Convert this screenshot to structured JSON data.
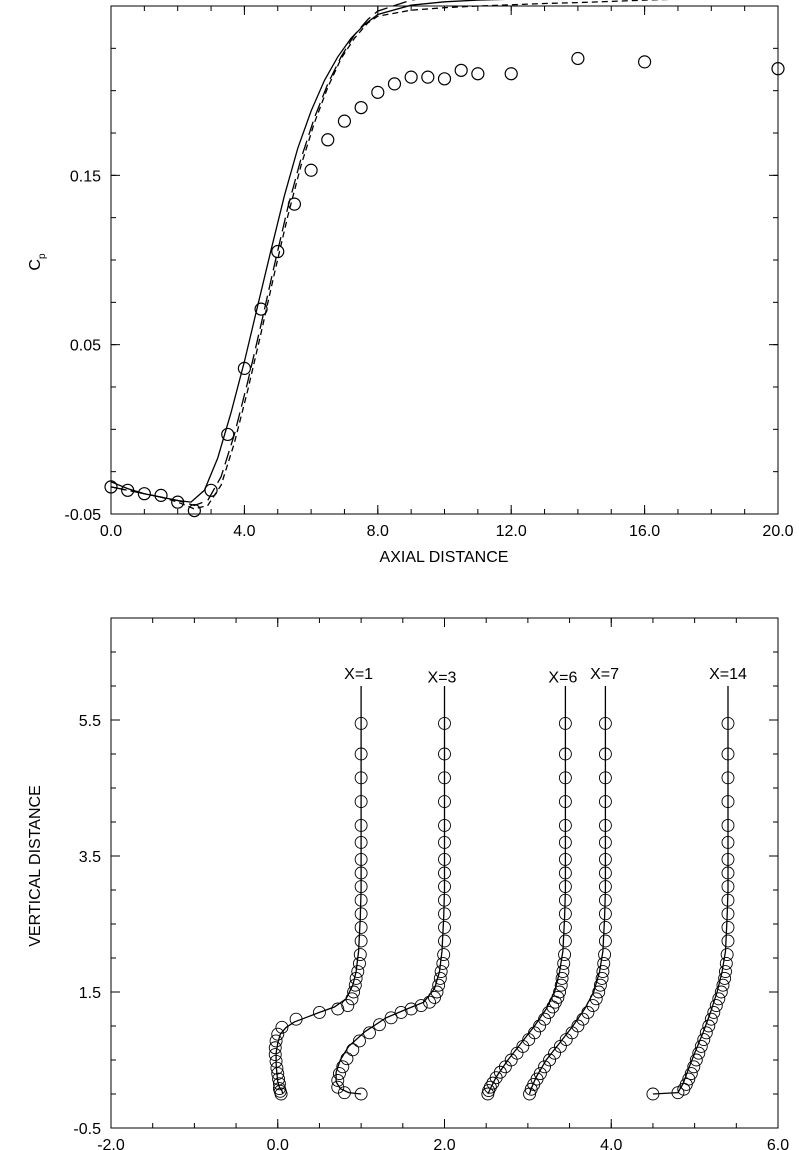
{
  "chart_data": [
    {
      "type": "line",
      "title": "",
      "xlabel": "AXIAL DISTANCE",
      "ylabel": "C",
      "ylabel_sub": "p",
      "xlim": [
        0,
        20
      ],
      "ylim": [
        -0.05,
        0.25
      ],
      "xticks": [
        0,
        4,
        8,
        12,
        16,
        20
      ],
      "xtick_labels": [
        "0.0",
        "4.0",
        "8.0",
        "12.0",
        "16.0",
        "20.0"
      ],
      "yticks": [
        -0.05,
        0.05,
        0.15
      ],
      "ytick_labels": [
        "-0.05",
        "0.05",
        "0.15"
      ],
      "grid": false,
      "series": [
        {
          "style": "solid",
          "x": [
            0,
            0.5,
            1,
            1.5,
            2,
            2.4,
            2.8,
            3.2,
            3.6,
            4,
            4.4,
            4.8,
            5.2,
            5.6,
            6,
            6.4,
            6.8,
            7.2,
            7.6,
            8,
            9,
            10,
            11,
            12,
            13,
            14,
            15,
            16,
            17,
            18,
            19,
            20
          ],
          "y": [
            -0.031,
            -0.035,
            -0.038,
            -0.04,
            -0.042,
            -0.043,
            -0.036,
            -0.017,
            0.01,
            0.04,
            0.073,
            0.106,
            0.138,
            0.166,
            0.188,
            0.206,
            0.22,
            0.231,
            0.239,
            0.245,
            0.2505,
            0.2525,
            0.2535,
            0.254,
            0.2545,
            0.255,
            0.2553,
            0.2556,
            0.2558,
            0.256,
            0.2562,
            0.2562
          ]
        },
        {
          "style": "long-dash",
          "x": [
            0,
            0.5,
            1,
            1.5,
            2,
            2.5,
            2.9,
            3.3,
            3.7,
            4.1,
            4.5,
            4.9,
            5.3,
            5.7,
            6.1,
            6.5,
            6.9,
            7.3,
            7.7,
            8,
            9,
            10,
            11,
            12,
            13,
            14,
            15,
            16,
            17,
            18,
            19,
            19.5,
            20
          ],
          "y": [
            -0.034,
            -0.036,
            -0.038,
            -0.04,
            -0.042,
            -0.045,
            -0.042,
            -0.028,
            -0.003,
            0.028,
            0.062,
            0.097,
            0.131,
            0.16,
            0.184,
            0.204,
            0.22,
            0.233,
            0.242,
            0.247,
            0.2535,
            0.2565,
            0.2585,
            0.2595,
            0.26,
            0.2608,
            0.2615,
            0.2625,
            0.2635,
            0.2645,
            0.266,
            0.2685,
            0.27
          ]
        },
        {
          "style": "short-dash",
          "x": [
            0,
            0.5,
            1,
            1.5,
            2,
            2.5,
            2.9,
            3.3,
            3.7,
            4.1,
            4.5,
            4.9,
            5.3,
            5.7,
            6.1,
            6.5,
            6.9,
            7.3,
            7.7,
            8,
            9,
            10,
            11,
            12,
            13,
            14,
            15,
            16,
            17,
            18,
            19,
            20
          ],
          "y": [
            -0.034,
            -0.036,
            -0.038,
            -0.04,
            -0.043,
            -0.047,
            -0.045,
            -0.033,
            -0.008,
            0.023,
            0.057,
            0.092,
            0.126,
            0.156,
            0.181,
            0.202,
            0.219,
            0.231,
            0.24,
            0.244,
            0.2475,
            0.249,
            0.25,
            0.2507,
            0.2515,
            0.252,
            0.2527,
            0.2535,
            0.254,
            0.2548,
            0.2555,
            0.2568
          ]
        },
        {
          "style": "circles",
          "x": [
            0,
            0.5,
            1,
            1.5,
            2,
            2.5,
            3,
            3.5,
            4,
            4.5,
            5,
            5.5,
            6,
            6.5,
            7,
            7.5,
            8,
            8.5,
            9,
            9.5,
            10,
            10.5,
            11,
            12,
            14,
            16,
            20
          ],
          "y": [
            -0.034,
            -0.036,
            -0.038,
            -0.039,
            -0.043,
            -0.048,
            -0.036,
            -0.003,
            0.036,
            0.071,
            0.105,
            0.133,
            0.153,
            0.171,
            0.182,
            0.19,
            0.199,
            0.204,
            0.208,
            0.208,
            0.207,
            0.212,
            0.21,
            0.21,
            0.219,
            0.217,
            0.213
          ]
        }
      ]
    },
    {
      "type": "line",
      "title": "",
      "xlabel": "",
      "ylabel": "VERTICAL DISTANCE",
      "xlim": [
        -2,
        6
      ],
      "ylim": [
        -0.5,
        7
      ],
      "xticks": [
        -2,
        0,
        2,
        4,
        6
      ],
      "xtick_labels": [
        "-2.0",
        "0.0",
        "2.0",
        "4.0",
        "6.0"
      ],
      "yticks": [
        -0.5,
        1.5,
        3.5,
        5.5
      ],
      "ytick_labels": [
        "-0.5",
        "1.5",
        "3.5",
        "5.5"
      ],
      "grid": false,
      "annotations": [
        {
          "text": "X=1",
          "x": 0.97,
          "y": 6.1
        },
        {
          "text": "X=3",
          "x": 1.97,
          "y": 6.05
        },
        {
          "text": "X=6",
          "x": 3.42,
          "y": 6.05
        },
        {
          "text": "X=7",
          "x": 3.92,
          "y": 6.1
        },
        {
          "text": "X=14",
          "x": 5.4,
          "y": 6.1
        }
      ],
      "profiles": [
        {
          "label": "X=1",
          "line_x": [
            1.0,
            1.0,
            1.0,
            0.99,
            0.97,
            0.94,
            0.9,
            0.82,
            0.68,
            0.5,
            0.35,
            0.2,
            0.1,
            0.03,
            0.0,
            -0.02,
            -0.02,
            -0.01,
            0.0,
            0.02,
            0.05,
            0.06
          ],
          "line_y": [
            6.0,
            4.0,
            3.0,
            2.6,
            2.1,
            1.8,
            1.6,
            1.4,
            1.28,
            1.2,
            1.13,
            1.06,
            0.98,
            0.88,
            0.75,
            0.6,
            0.45,
            0.3,
            0.18,
            0.1,
            0.05,
            0.0
          ],
          "points_x": [
            1.0,
            1.0,
            1.0,
            1.0,
            1.0,
            1.0,
            1.0,
            1.0,
            1.0,
            1.0,
            1.0,
            1.0,
            1.0,
            0.99,
            0.98,
            0.96,
            0.94,
            0.93,
            0.91,
            0.89,
            0.84,
            0.72,
            0.5,
            0.22,
            0.05,
            0.0,
            -0.02,
            -0.03,
            -0.03,
            -0.02,
            -0.01,
            0.0,
            0.01,
            0.02,
            0.02,
            0.03,
            0.04
          ],
          "points_y": [
            5.45,
            5.0,
            4.65,
            4.3,
            3.95,
            3.7,
            3.45,
            3.25,
            3.05,
            2.85,
            2.65,
            2.45,
            2.25,
            2.05,
            1.92,
            1.8,
            1.7,
            1.6,
            1.5,
            1.4,
            1.3,
            1.25,
            1.2,
            1.1,
            0.98,
            0.88,
            0.78,
            0.68,
            0.58,
            0.48,
            0.38,
            0.3,
            0.22,
            0.15,
            0.08,
            0.04,
            0.0
          ]
        },
        {
          "label": "X=3",
          "line_x": [
            2.0,
            2.0,
            2.0,
            1.99,
            1.97,
            1.94,
            1.88,
            1.75,
            1.55,
            1.3,
            1.05,
            0.85,
            0.75,
            0.7,
            0.7,
            0.75,
            0.85,
            1.0
          ],
          "line_y": [
            6.0,
            4.0,
            3.0,
            2.6,
            2.1,
            1.8,
            1.55,
            1.35,
            1.25,
            1.12,
            0.92,
            0.7,
            0.5,
            0.32,
            0.18,
            0.08,
            0.02,
            0.0
          ],
          "points_x": [
            2.0,
            2.0,
            2.0,
            2.0,
            2.0,
            2.0,
            2.0,
            2.0,
            2.0,
            2.0,
            2.0,
            2.0,
            2.0,
            1.99,
            1.98,
            1.96,
            1.95,
            1.93,
            1.91,
            1.88,
            1.82,
            1.72,
            1.6,
            1.48,
            1.36,
            1.22,
            1.1,
            0.98,
            0.9,
            0.83,
            0.78,
            0.74,
            0.72,
            0.72,
            0.8,
            1.0
          ],
          "points_y": [
            5.45,
            5.0,
            4.65,
            4.3,
            3.95,
            3.7,
            3.45,
            3.25,
            3.05,
            2.85,
            2.65,
            2.45,
            2.25,
            2.05,
            1.92,
            1.8,
            1.7,
            1.6,
            1.5,
            1.42,
            1.35,
            1.3,
            1.25,
            1.2,
            1.12,
            1.02,
            0.9,
            0.78,
            0.65,
            0.52,
            0.4,
            0.3,
            0.2,
            0.1,
            0.02,
            0.0
          ]
        },
        {
          "label": "X=6",
          "line_x": [
            3.45,
            3.45,
            3.45,
            3.44,
            3.42,
            3.38,
            3.32,
            3.22,
            3.08,
            2.92,
            2.76,
            2.62,
            2.55,
            2.52
          ],
          "line_y": [
            6.0,
            4.0,
            3.0,
            2.6,
            2.1,
            1.8,
            1.5,
            1.25,
            1.0,
            0.75,
            0.5,
            0.25,
            0.08,
            0.0
          ],
          "points_x": [
            3.45,
            3.45,
            3.45,
            3.45,
            3.45,
            3.45,
            3.45,
            3.45,
            3.45,
            3.45,
            3.45,
            3.45,
            3.45,
            3.44,
            3.43,
            3.42,
            3.41,
            3.4,
            3.38,
            3.36,
            3.33,
            3.3,
            3.25,
            3.2,
            3.14,
            3.08,
            3.01,
            2.94,
            2.87,
            2.8,
            2.73,
            2.67,
            2.62,
            2.58,
            2.55,
            2.53,
            2.52
          ],
          "points_y": [
            5.45,
            5.0,
            4.65,
            4.3,
            3.95,
            3.7,
            3.45,
            3.25,
            3.05,
            2.85,
            2.65,
            2.45,
            2.25,
            2.05,
            1.92,
            1.8,
            1.7,
            1.6,
            1.5,
            1.42,
            1.35,
            1.28,
            1.2,
            1.1,
            1.0,
            0.9,
            0.8,
            0.7,
            0.6,
            0.5,
            0.4,
            0.32,
            0.24,
            0.16,
            0.1,
            0.05,
            0.0
          ]
        },
        {
          "label": "X=7",
          "line_x": [
            3.93,
            3.93,
            3.93,
            3.92,
            3.9,
            3.86,
            3.79,
            3.68,
            3.54,
            3.38,
            3.22,
            3.1,
            3.04,
            3.02
          ],
          "line_y": [
            6.0,
            4.0,
            3.0,
            2.6,
            2.1,
            1.8,
            1.5,
            1.25,
            1.0,
            0.75,
            0.5,
            0.25,
            0.08,
            0.0
          ],
          "points_x": [
            3.93,
            3.93,
            3.93,
            3.93,
            3.93,
            3.93,
            3.93,
            3.93,
            3.93,
            3.93,
            3.93,
            3.93,
            3.93,
            3.92,
            3.91,
            3.9,
            3.89,
            3.87,
            3.85,
            3.82,
            3.78,
            3.72,
            3.66,
            3.6,
            3.53,
            3.46,
            3.39,
            3.32,
            3.26,
            3.2,
            3.15,
            3.11,
            3.07,
            3.04,
            3.02
          ],
          "points_y": [
            5.45,
            5.0,
            4.65,
            4.3,
            3.95,
            3.7,
            3.45,
            3.25,
            3.05,
            2.85,
            2.65,
            2.45,
            2.25,
            2.05,
            1.92,
            1.8,
            1.7,
            1.6,
            1.5,
            1.4,
            1.3,
            1.2,
            1.1,
            1.0,
            0.9,
            0.8,
            0.7,
            0.6,
            0.5,
            0.4,
            0.3,
            0.22,
            0.14,
            0.07,
            0.0
          ]
        },
        {
          "label": "X=14",
          "line_x": [
            5.4,
            5.4,
            5.4,
            5.39,
            5.37,
            5.33,
            5.27,
            5.19,
            5.1,
            5.0,
            4.92,
            4.86,
            4.8,
            4.5
          ],
          "line_y": [
            6.0,
            4.0,
            3.0,
            2.6,
            2.1,
            1.8,
            1.5,
            1.2,
            0.9,
            0.6,
            0.35,
            0.15,
            0.02,
            0.0
          ],
          "points_x": [
            5.4,
            5.4,
            5.4,
            5.4,
            5.4,
            5.4,
            5.4,
            5.4,
            5.4,
            5.4,
            5.4,
            5.4,
            5.4,
            5.39,
            5.38,
            5.37,
            5.36,
            5.34,
            5.32,
            5.29,
            5.26,
            5.23,
            5.2,
            5.17,
            5.14,
            5.11,
            5.08,
            5.05,
            5.02,
            4.99,
            4.96,
            4.93,
            4.9,
            4.87,
            4.8,
            4.5
          ],
          "points_y": [
            5.45,
            5.0,
            4.65,
            4.3,
            3.95,
            3.7,
            3.45,
            3.25,
            3.05,
            2.85,
            2.65,
            2.45,
            2.25,
            2.05,
            1.92,
            1.8,
            1.7,
            1.6,
            1.5,
            1.4,
            1.3,
            1.2,
            1.1,
            1.0,
            0.9,
            0.8,
            0.7,
            0.6,
            0.5,
            0.4,
            0.3,
            0.22,
            0.14,
            0.07,
            0.02,
            0.0
          ]
        }
      ]
    }
  ]
}
